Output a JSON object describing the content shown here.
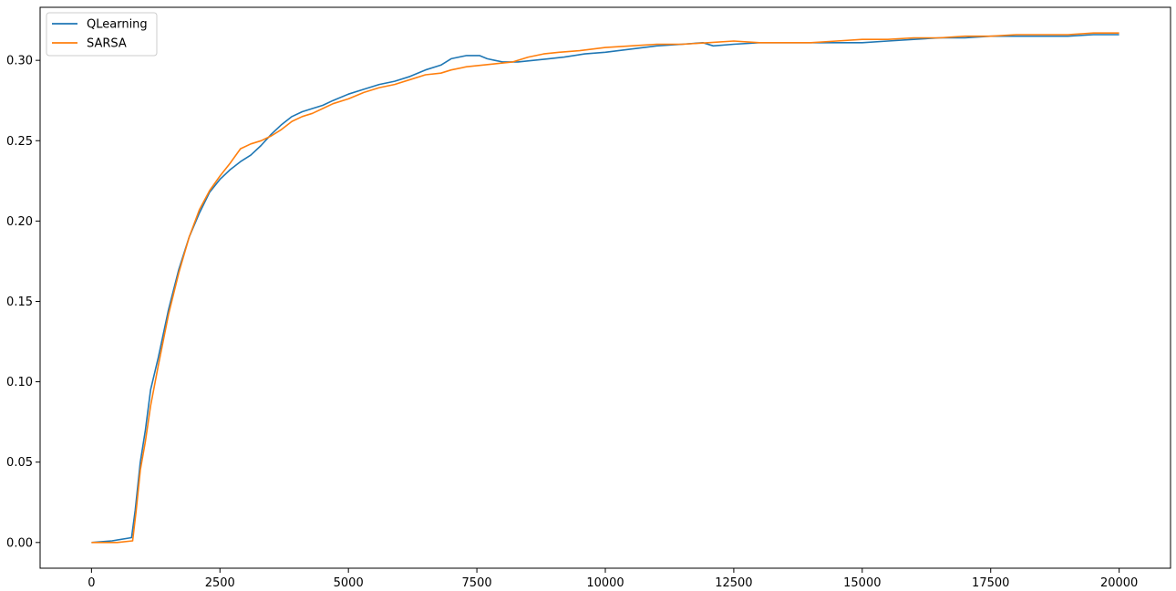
{
  "chart_data": {
    "type": "line",
    "title": "",
    "xlabel": "",
    "ylabel": "",
    "xlim": [
      -1000,
      21000
    ],
    "ylim": [
      -0.016,
      0.333
    ],
    "xticks": [
      0,
      2500,
      5000,
      7500,
      10000,
      12500,
      15000,
      17500,
      20000
    ],
    "xtick_labels": [
      "0",
      "2500",
      "5000",
      "7500",
      "10000",
      "12500",
      "15000",
      "17500",
      "20000"
    ],
    "yticks": [
      0.0,
      0.05,
      0.1,
      0.15,
      0.2,
      0.25,
      0.3
    ],
    "ytick_labels": [
      "0.00",
      "0.05",
      "0.10",
      "0.15",
      "0.20",
      "0.25",
      "0.30"
    ],
    "grid": false,
    "legend": "top-left",
    "series": [
      {
        "name": "QLearning",
        "color": "#1f77b4",
        "x": [
          0,
          400,
          780,
          850,
          950,
          1050,
          1150,
          1300,
          1500,
          1700,
          1900,
          2100,
          2300,
          2500,
          2700,
          2900,
          3100,
          3300,
          3500,
          3700,
          3900,
          4100,
          4300,
          4500,
          4700,
          5000,
          5300,
          5600,
          5900,
          6200,
          6500,
          6800,
          7000,
          7300,
          7550,
          7700,
          7850,
          8000,
          8300,
          8600,
          8900,
          9200,
          9600,
          10000,
          10500,
          11000,
          11500,
          11900,
          12100,
          12500,
          13000,
          13500,
          14000,
          14500,
          15000,
          15500,
          16000,
          16500,
          17000,
          17500,
          18000,
          18500,
          19000,
          19500,
          20000
        ],
        "y": [
          0.0,
          0.001,
          0.003,
          0.02,
          0.05,
          0.07,
          0.095,
          0.115,
          0.145,
          0.17,
          0.19,
          0.205,
          0.218,
          0.226,
          0.232,
          0.237,
          0.241,
          0.247,
          0.254,
          0.26,
          0.265,
          0.268,
          0.27,
          0.272,
          0.275,
          0.279,
          0.282,
          0.285,
          0.287,
          0.29,
          0.294,
          0.297,
          0.301,
          0.303,
          0.303,
          0.301,
          0.3,
          0.299,
          0.299,
          0.3,
          0.301,
          0.302,
          0.304,
          0.305,
          0.307,
          0.309,
          0.31,
          0.311,
          0.309,
          0.31,
          0.311,
          0.311,
          0.311,
          0.311,
          0.311,
          0.312,
          0.313,
          0.314,
          0.314,
          0.315,
          0.315,
          0.315,
          0.315,
          0.316,
          0.316
        ]
      },
      {
        "name": "SARSA",
        "color": "#ff7f0e",
        "x": [
          0,
          500,
          800,
          870,
          950,
          1050,
          1150,
          1300,
          1500,
          1700,
          1900,
          2100,
          2300,
          2500,
          2700,
          2900,
          3100,
          3300,
          3500,
          3700,
          3900,
          4100,
          4300,
          4500,
          4700,
          5000,
          5300,
          5600,
          5900,
          6200,
          6500,
          6800,
          7000,
          7300,
          7600,
          7900,
          8200,
          8500,
          8800,
          9100,
          9500,
          10000,
          10500,
          11000,
          11500,
          12000,
          12500,
          13000,
          13500,
          14000,
          14500,
          15000,
          15500,
          16000,
          16500,
          17000,
          17500,
          18000,
          18500,
          19000,
          19500,
          20000
        ],
        "y": [
          0.0,
          0.0,
          0.001,
          0.02,
          0.045,
          0.063,
          0.085,
          0.11,
          0.142,
          0.168,
          0.19,
          0.207,
          0.219,
          0.228,
          0.236,
          0.245,
          0.248,
          0.25,
          0.253,
          0.257,
          0.262,
          0.265,
          0.267,
          0.27,
          0.273,
          0.276,
          0.28,
          0.283,
          0.285,
          0.288,
          0.291,
          0.292,
          0.294,
          0.296,
          0.297,
          0.298,
          0.299,
          0.302,
          0.304,
          0.305,
          0.306,
          0.308,
          0.309,
          0.31,
          0.31,
          0.311,
          0.312,
          0.311,
          0.311,
          0.311,
          0.312,
          0.313,
          0.313,
          0.314,
          0.314,
          0.315,
          0.315,
          0.316,
          0.316,
          0.316,
          0.317,
          0.317
        ]
      }
    ]
  }
}
